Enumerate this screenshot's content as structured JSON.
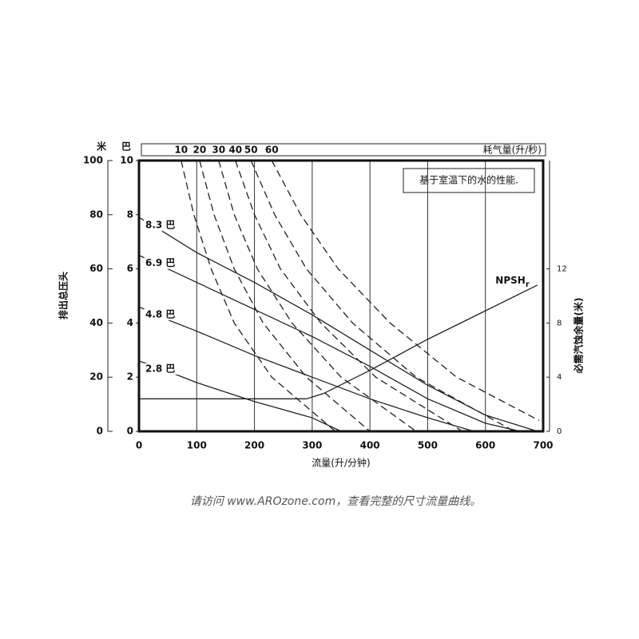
{
  "chart_data": {
    "type": "line",
    "x_label": "流量(升/分钟)",
    "y_label": "排出总压头",
    "y_unit": "米",
    "ybar_unit": "巴",
    "y2_label": "必需汽蚀余量(米)",
    "top_axis_label": "耗气量(升/秒)",
    "annotation": "基于室温下的水的性能.",
    "xlim": [
      0,
      700
    ],
    "xticks": [
      0,
      100,
      200,
      300,
      400,
      500,
      600,
      700
    ],
    "ylim": [
      0,
      100
    ],
    "yticks": [
      0,
      20,
      40,
      60,
      80,
      100
    ],
    "ybarlim": [
      0,
      10
    ],
    "ybarticks": [
      0,
      2,
      4,
      6,
      8,
      10
    ],
    "y2lim": [
      0,
      20
    ],
    "y2ticks": [
      0,
      4,
      8,
      12
    ],
    "grid": true,
    "series": [
      {
        "name": "8.3 巴",
        "style": "solid",
        "color": "#222",
        "x": [
          0,
          40,
          100,
          200,
          300,
          400,
          500,
          600,
          690
        ],
        "values": [
          79,
          74,
          66,
          55,
          43,
          30,
          17,
          6,
          0
        ]
      },
      {
        "name": "6.9 巴",
        "style": "solid",
        "color": "#222",
        "x": [
          0,
          40,
          100,
          200,
          300,
          400,
          500,
          600,
          660
        ],
        "values": [
          65,
          61,
          55,
          45,
          35,
          24,
          12,
          3,
          0
        ]
      },
      {
        "name": "4.8 巴",
        "style": "solid",
        "color": "#222",
        "x": [
          0,
          40,
          100,
          200,
          300,
          400,
          500,
          580
        ],
        "values": [
          46,
          42,
          37,
          28,
          20,
          12,
          5,
          0
        ]
      },
      {
        "name": "2.8 巴",
        "style": "solid",
        "color": "#222",
        "x": [
          0,
          40,
          100,
          200,
          300,
          350
        ],
        "values": [
          26,
          23,
          18,
          11,
          5,
          0
        ]
      },
      {
        "name": "10",
        "style": "dashed",
        "color": "#222",
        "x": [
          73,
          95,
          125,
          165,
          230,
          340
        ],
        "values": [
          100,
          80,
          60,
          40,
          20,
          0
        ]
      },
      {
        "name": "20",
        "style": "dashed",
        "color": "#222",
        "x": [
          105,
          130,
          165,
          215,
          290,
          400
        ],
        "values": [
          100,
          80,
          60,
          40,
          20,
          0
        ]
      },
      {
        "name": "30",
        "style": "dashed",
        "color": "#222",
        "x": [
          138,
          165,
          205,
          265,
          350,
          480
        ],
        "values": [
          100,
          80,
          60,
          40,
          20,
          0
        ]
      },
      {
        "name": "40",
        "style": "dashed",
        "color": "#222",
        "x": [
          167,
          200,
          245,
          315,
          410,
          560
        ],
        "values": [
          100,
          80,
          60,
          40,
          20,
          0
        ]
      },
      {
        "name": "50",
        "style": "dashed",
        "color": "#222",
        "x": [
          194,
          235,
          290,
          370,
          480,
          650
        ],
        "values": [
          100,
          80,
          60,
          40,
          20,
          0
        ]
      },
      {
        "name": "60",
        "style": "dashed",
        "color": "#222",
        "x": [
          230,
          280,
          345,
          435,
          550,
          693
        ],
        "values": [
          100,
          80,
          60,
          40,
          20,
          4
        ]
      },
      {
        "name": "NPSH",
        "name_subscript": "r",
        "axis": "y2",
        "style": "solid",
        "color": "#222",
        "x": [
          0,
          290,
          320,
          400,
          500,
          600,
          690
        ],
        "values": [
          2.4,
          2.4,
          2.8,
          4.5,
          6.8,
          8.9,
          10.8
        ]
      }
    ]
  },
  "footer": "请访问 www.AROzone.com，查看完整的尺寸流量曲线。"
}
